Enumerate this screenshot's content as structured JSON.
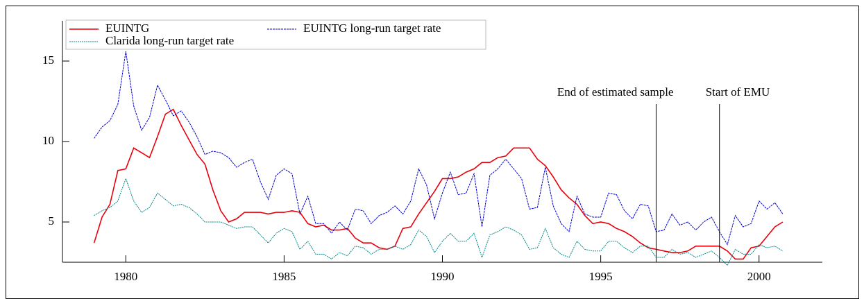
{
  "chart_data": {
    "type": "line",
    "x": [
      1979,
      1979.25,
      1979.5,
      1979.75,
      1980,
      1980.25,
      1980.5,
      1980.75,
      1981,
      1981.25,
      1981.5,
      1981.75,
      1982,
      1982.25,
      1982.5,
      1982.75,
      1983,
      1983.25,
      1983.5,
      1983.75,
      1984,
      1984.25,
      1984.5,
      1984.75,
      1985,
      1985.25,
      1985.5,
      1985.75,
      1986,
      1986.25,
      1986.5,
      1986.75,
      1987,
      1987.25,
      1987.5,
      1987.75,
      1988,
      1988.25,
      1988.5,
      1988.75,
      1989,
      1989.25,
      1989.5,
      1989.75,
      1990,
      1990.25,
      1990.5,
      1990.75,
      1991,
      1991.25,
      1991.5,
      1991.75,
      1992,
      1992.25,
      1992.5,
      1992.75,
      1993,
      1993.25,
      1993.5,
      1993.75,
      1994,
      1994.25,
      1994.5,
      1994.75,
      1995,
      1995.25,
      1995.5,
      1995.75,
      1996,
      1996.25,
      1996.5,
      1996.75,
      1997,
      1997.25,
      1997.5,
      1997.75,
      1998,
      1998.25,
      1998.5,
      1998.75,
      1999,
      1999.25,
      1999.5,
      1999.75,
      2000,
      2000.25,
      2000.5,
      2000.75
    ],
    "series": [
      {
        "name": "EUINTG",
        "color": "#e8000b",
        "dash": "none",
        "values": [
          3.7,
          5.3,
          6.1,
          8.2,
          8.3,
          9.6,
          9.3,
          9.0,
          10.3,
          11.7,
          12.0,
          11.0,
          10.1,
          9.2,
          8.6,
          7.0,
          5.7,
          5.0,
          5.2,
          5.6,
          5.6,
          5.6,
          5.5,
          5.6,
          5.6,
          5.7,
          5.6,
          4.9,
          4.7,
          4.8,
          4.5,
          4.5,
          4.6,
          4.0,
          3.7,
          3.7,
          3.4,
          3.3,
          3.5,
          4.6,
          4.7,
          5.5,
          6.2,
          6.9,
          7.7,
          7.7,
          7.8,
          8.1,
          8.3,
          8.7,
          8.7,
          9.0,
          9.1,
          9.6,
          9.6,
          9.6,
          8.9,
          8.5,
          7.8,
          7.0,
          6.5,
          6.1,
          5.4,
          4.9,
          5.0,
          4.9,
          4.6,
          4.4,
          4.1,
          3.7,
          3.4,
          3.3,
          3.2,
          3.1,
          3.1,
          3.2,
          3.5,
          3.5,
          3.5,
          3.5,
          3.2,
          2.7,
          2.7,
          3.4,
          3.5,
          4.1,
          4.7,
          5.0
        ]
      },
      {
        "name": "EUINTG long-run target rate",
        "color": "#0000d0",
        "dash": "3 1",
        "values": [
          10.2,
          10.9,
          11.3,
          12.3,
          15.6,
          12.2,
          10.7,
          11.5,
          13.5,
          12.6,
          11.6,
          11.9,
          11.2,
          10.3,
          9.2,
          9.4,
          9.3,
          9.0,
          8.4,
          8.7,
          8.9,
          7.5,
          6.4,
          7.9,
          8.3,
          8.0,
          5.5,
          6.6,
          4.9,
          4.9,
          4.3,
          5.0,
          4.5,
          5.8,
          5.7,
          4.9,
          5.4,
          5.6,
          6.0,
          5.5,
          6.3,
          8.3,
          7.3,
          5.2,
          6.8,
          8.1,
          6.7,
          6.8,
          8.0,
          4.7,
          7.9,
          8.3,
          8.9,
          8.3,
          7.7,
          5.8,
          5.9,
          8.4,
          6.0,
          4.9,
          4.4,
          6.6,
          5.5,
          5.3,
          5.3,
          6.8,
          6.7,
          5.7,
          5.2,
          6.1,
          6.0,
          4.4,
          4.5,
          5.5,
          4.8,
          5.0,
          4.5,
          5.0,
          5.3,
          4.4,
          3.6,
          5.4,
          4.7,
          4.9,
          6.3,
          5.8,
          6.2,
          5.5
        ]
      },
      {
        "name": "Clarida long-run target rate",
        "color": "#008a8a",
        "dash": "2 1",
        "values": [
          5.4,
          5.7,
          5.9,
          6.3,
          7.7,
          6.3,
          5.6,
          5.9,
          6.8,
          6.4,
          6.0,
          6.1,
          5.9,
          5.5,
          5.0,
          5.0,
          5.0,
          4.8,
          4.6,
          4.7,
          4.7,
          4.2,
          3.7,
          4.3,
          4.6,
          4.4,
          3.3,
          3.8,
          3.0,
          3.0,
          2.7,
          3.1,
          2.9,
          3.5,
          3.4,
          3.0,
          3.3,
          3.3,
          3.5,
          3.3,
          3.6,
          4.5,
          4.1,
          3.1,
          3.8,
          4.3,
          3.8,
          3.8,
          4.3,
          2.8,
          4.2,
          4.4,
          4.7,
          4.5,
          4.2,
          3.3,
          3.4,
          4.6,
          3.4,
          3.0,
          2.8,
          3.8,
          3.3,
          3.2,
          3.2,
          3.8,
          3.8,
          3.4,
          3.1,
          3.5,
          3.5,
          2.8,
          2.8,
          3.3,
          3.0,
          3.1,
          2.8,
          3.0,
          3.2,
          2.8,
          2.3,
          3.3,
          3.0,
          3.0,
          3.6,
          3.4,
          3.5,
          3.2
        ]
      }
    ],
    "annotations": [
      {
        "text": "End of estimated sample",
        "x": 1996.75
      },
      {
        "text": "Start of EMU",
        "x": 1998.75
      }
    ],
    "xlim": [
      1978,
      2002
    ],
    "xticks": [
      1980,
      1985,
      1990,
      1995,
      2000
    ],
    "ylim": [
      2.5,
      17.5
    ],
    "yticks": [
      5,
      10,
      15
    ],
    "legend": "top-left"
  }
}
